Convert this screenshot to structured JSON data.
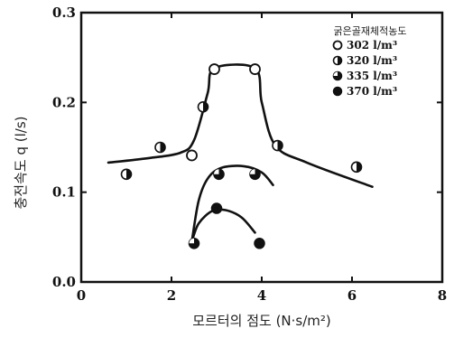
{
  "chart_data": {
    "type": "scatter",
    "xlabel": "모르터의 점도 (N·s/m²)",
    "ylabel": "충전속도 q (l/s)",
    "xlim": [
      0,
      8
    ],
    "ylim": [
      0,
      0.3
    ],
    "x_ticks": [
      "0",
      "2",
      "4",
      "6",
      "8"
    ],
    "y_ticks": [
      "0.0",
      "0.1",
      "0.2",
      "0.3"
    ],
    "legend_title": "굵은골재체적농도",
    "legend_position": "top-right",
    "grid": false,
    "series": [
      {
        "name": "302 l/m³",
        "marker": "open",
        "x": [
          2.95,
          3.85
        ],
        "y": [
          0.237,
          0.237
        ]
      },
      {
        "name": "320 l/m³",
        "marker": "half",
        "x": [
          1.0,
          1.75,
          2.7,
          4.35,
          6.1
        ],
        "y": [
          0.12,
          0.15,
          0.195,
          0.152,
          0.128
        ]
      },
      {
        "name": "335 l/m³",
        "marker": "quarter",
        "x": [
          2.5,
          3.05,
          3.85
        ],
        "y": [
          0.043,
          0.12,
          0.12
        ]
      },
      {
        "name": "370 l/m³",
        "marker": "filled",
        "x": [
          3.0,
          3.95
        ],
        "y": [
          0.082,
          0.043
        ]
      }
    ],
    "extra_points": [
      {
        "marker": "open",
        "x": 2.45,
        "y": 0.141
      }
    ],
    "trend_curves": [
      {
        "x": [
          0.6,
          1.5,
          2.2,
          2.5,
          2.8,
          2.95,
          3.85,
          4.0,
          4.3,
          5.0,
          6.45
        ],
        "y": [
          0.133,
          0.138,
          0.144,
          0.158,
          0.21,
          0.238,
          0.238,
          0.2,
          0.152,
          0.133,
          0.106
        ]
      },
      {
        "x": [
          2.45,
          2.6,
          2.8,
          3.1,
          3.6,
          4.0,
          4.25
        ],
        "y": [
          0.045,
          0.09,
          0.115,
          0.127,
          0.129,
          0.122,
          0.108
        ]
      },
      {
        "x": [
          2.45,
          2.6,
          2.9,
          3.2,
          3.55,
          3.85
        ],
        "y": [
          0.045,
          0.065,
          0.079,
          0.08,
          0.072,
          0.055
        ]
      }
    ]
  }
}
